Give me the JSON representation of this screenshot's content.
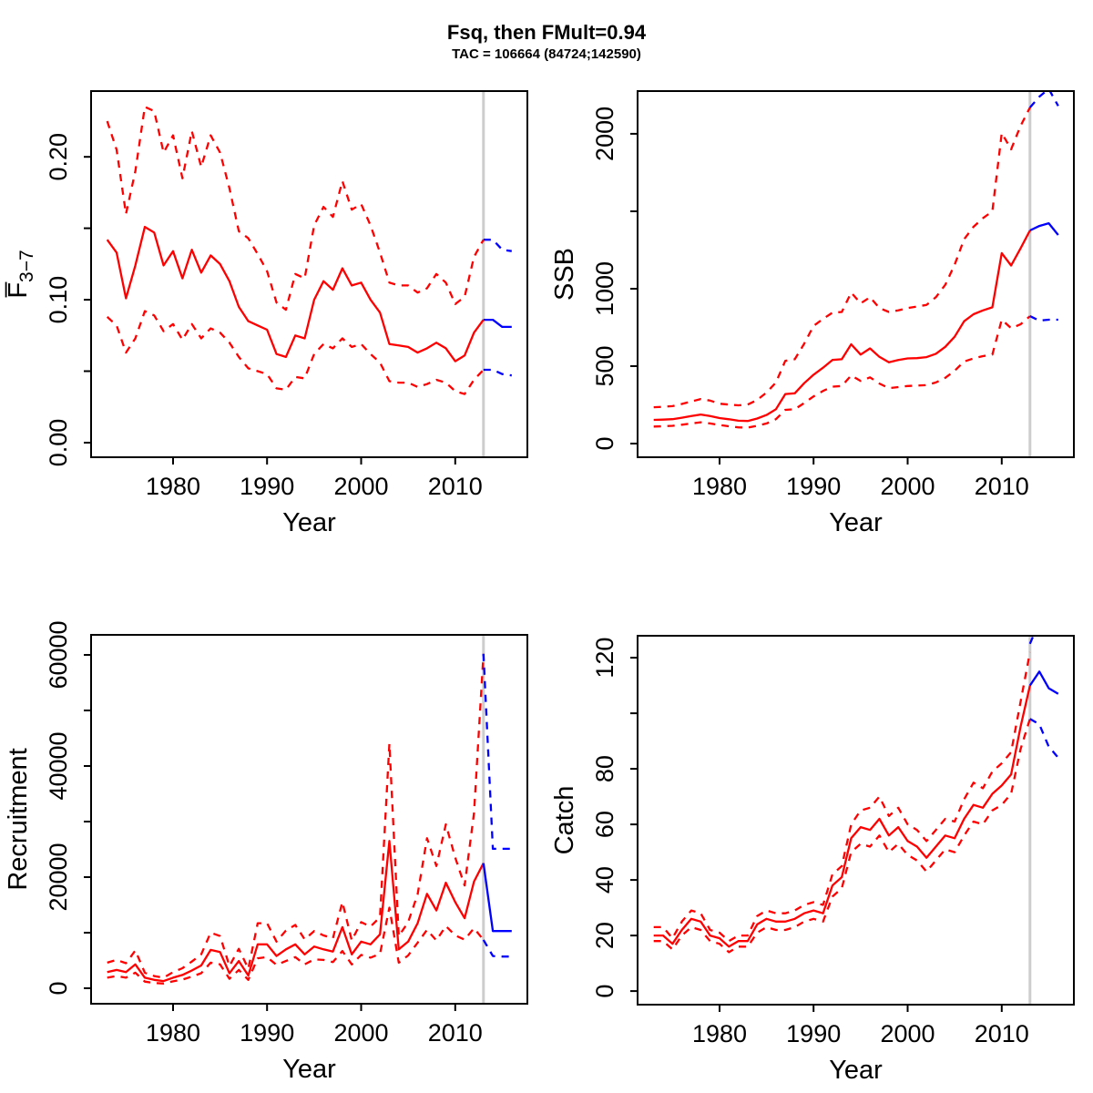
{
  "title": "Fsq, then FMult=0.94",
  "subtitle": "TAC = 106664 (84724;142590)",
  "colors": {
    "historical": "#ff0000",
    "projection": "#0000ff",
    "forecast_divider": "#cdcdcd",
    "axis": "#000000",
    "background": "#ffffff"
  },
  "chart_data": [
    {
      "type": "line",
      "name": "fbar",
      "ylabel": "F̅",
      "ylabel_sub": "3−7",
      "xlabel": "Year",
      "legend": "none",
      "grid": false,
      "xlim": [
        1971.29,
        2017.67
      ],
      "ylim": [
        -0.0102,
        0.246
      ],
      "xticks": [
        1980,
        1990,
        2000,
        2010
      ],
      "yticks": [
        {
          "v": 0.0,
          "label": "0.00"
        },
        {
          "v": 0.05,
          "label": ""
        },
        {
          "v": 0.1,
          "label": "0.10"
        },
        {
          "v": 0.15,
          "label": ""
        },
        {
          "v": 0.2,
          "label": "0.20"
        }
      ],
      "vline_year": 2013,
      "years": [
        1973,
        1974,
        1975,
        1976,
        1977,
        1978,
        1979,
        1980,
        1981,
        1982,
        1983,
        1984,
        1985,
        1986,
        1987,
        1988,
        1989,
        1990,
        1991,
        1992,
        1993,
        1994,
        1995,
        1996,
        1997,
        1998,
        1999,
        2000,
        2001,
        2002,
        2003,
        2004,
        2005,
        2006,
        2007,
        2008,
        2009,
        2010,
        2011,
        2012,
        2013
      ],
      "series": [
        {
          "name": "median",
          "style": "solid",
          "color_key": "historical",
          "values": [
            0.142,
            0.133,
            0.101,
            0.124,
            0.151,
            0.147,
            0.124,
            0.134,
            0.115,
            0.135,
            0.119,
            0.131,
            0.125,
            0.113,
            0.095,
            0.085,
            0.082,
            0.079,
            0.062,
            0.06,
            0.075,
            0.073,
            0.1,
            0.113,
            0.107,
            0.122,
            0.11,
            0.112,
            0.1,
            0.091,
            0.069,
            0.068,
            0.067,
            0.063,
            0.066,
            0.07,
            0.066,
            0.057,
            0.061,
            0.077,
            0.086
          ]
        },
        {
          "name": "upper-ci",
          "style": "dashed",
          "color_key": "historical",
          "values": [
            0.225,
            0.205,
            0.16,
            0.19,
            0.235,
            0.232,
            0.203,
            0.215,
            0.185,
            0.218,
            0.193,
            0.215,
            0.203,
            0.178,
            0.148,
            0.143,
            0.132,
            0.12,
            0.098,
            0.093,
            0.118,
            0.115,
            0.152,
            0.165,
            0.158,
            0.183,
            0.163,
            0.167,
            0.152,
            0.133,
            0.112,
            0.11,
            0.11,
            0.105,
            0.108,
            0.118,
            0.112,
            0.097,
            0.102,
            0.13,
            0.142
          ]
        },
        {
          "name": "lower-ci",
          "style": "dashed",
          "color_key": "historical",
          "values": [
            0.088,
            0.082,
            0.063,
            0.073,
            0.092,
            0.089,
            0.078,
            0.083,
            0.072,
            0.083,
            0.073,
            0.08,
            0.077,
            0.07,
            0.06,
            0.052,
            0.05,
            0.048,
            0.038,
            0.037,
            0.046,
            0.045,
            0.062,
            0.069,
            0.066,
            0.073,
            0.067,
            0.069,
            0.062,
            0.056,
            0.043,
            0.042,
            0.042,
            0.039,
            0.041,
            0.044,
            0.042,
            0.036,
            0.034,
            0.044,
            0.051
          ]
        }
      ],
      "projection": {
        "years": [
          2013,
          2014,
          2015,
          2016
        ],
        "series": [
          {
            "name": "median",
            "style": "solid",
            "values": [
              0.086,
              0.086,
              0.081,
              0.081
            ]
          },
          {
            "name": "upper-ci",
            "style": "dashed",
            "values": [
              0.142,
              0.142,
              0.135,
              0.134
            ]
          },
          {
            "name": "lower-ci",
            "style": "dashed",
            "values": [
              0.051,
              0.051,
              0.048,
              0.047
            ]
          }
        ]
      }
    },
    {
      "type": "line",
      "name": "ssb",
      "ylabel": "SSB",
      "xlabel": "Year",
      "legend": "none",
      "grid": false,
      "xlim": [
        1971.29,
        2017.67
      ],
      "ylim": [
        -88,
        2276
      ],
      "xticks": [
        1980,
        1990,
        2000,
        2010
      ],
      "yticks": [
        {
          "v": 0,
          "label": "0"
        },
        {
          "v": 500,
          "label": "500"
        },
        {
          "v": 1000,
          "label": "1000"
        },
        {
          "v": 1500,
          "label": ""
        },
        {
          "v": 2000,
          "label": "2000"
        }
      ],
      "vline_year": 2013,
      "years": [
        1973,
        1974,
        1975,
        1976,
        1977,
        1978,
        1979,
        1980,
        1981,
        1982,
        1983,
        1984,
        1985,
        1986,
        1987,
        1988,
        1989,
        1990,
        1991,
        1992,
        1993,
        1994,
        1995,
        1996,
        1997,
        1998,
        1999,
        2000,
        2001,
        2002,
        2003,
        2004,
        2005,
        2006,
        2007,
        2008,
        2009,
        2010,
        2011,
        2012,
        2013
      ],
      "series": [
        {
          "name": "median",
          "style": "solid",
          "color_key": "historical",
          "values": [
            153,
            155,
            158,
            167,
            178,
            188,
            178,
            165,
            157,
            148,
            146,
            162,
            185,
            222,
            320,
            325,
            390,
            445,
            490,
            540,
            545,
            641,
            575,
            615,
            560,
            525,
            540,
            550,
            552,
            558,
            580,
            625,
            690,
            790,
            835,
            860,
            880,
            1230,
            1150,
            1260,
            1376
          ]
        },
        {
          "name": "upper-ci",
          "style": "dashed",
          "color_key": "historical",
          "values": [
            235,
            238,
            242,
            256,
            272,
            288,
            278,
            258,
            252,
            247,
            252,
            282,
            330,
            395,
            535,
            545,
            645,
            760,
            805,
            845,
            850,
            975,
            905,
            945,
            875,
            850,
            860,
            875,
            885,
            895,
            945,
            1025,
            1155,
            1320,
            1400,
            1455,
            1500,
            2005,
            1900,
            2050,
            2170
          ]
        },
        {
          "name": "lower-ci",
          "style": "dashed",
          "color_key": "historical",
          "values": [
            110,
            112,
            115,
            122,
            130,
            138,
            130,
            120,
            112,
            105,
            103,
            115,
            130,
            158,
            218,
            222,
            262,
            305,
            340,
            368,
            372,
            440,
            405,
            428,
            388,
            358,
            365,
            372,
            375,
            378,
            395,
            425,
            470,
            530,
            550,
            565,
            575,
            800,
            745,
            770,
            823
          ]
        }
      ],
      "projection": {
        "years": [
          2013,
          2014,
          2015,
          2016
        ],
        "series": [
          {
            "name": "median",
            "style": "solid",
            "values": [
              1376,
              1405,
              1423,
              1347
            ]
          },
          {
            "name": "upper-ci",
            "style": "dashed",
            "values": [
              2170,
              2240,
              2290,
              2180
            ]
          },
          {
            "name": "lower-ci",
            "style": "dashed",
            "values": [
              823,
              794,
              800,
              800
            ]
          }
        ]
      }
    },
    {
      "type": "line",
      "name": "recruitment",
      "ylabel": "Recruitment",
      "xlabel": "Year",
      "legend": "none",
      "grid": false,
      "xlim": [
        1971.29,
        2017.67
      ],
      "ylim": [
        -2787,
        63606
      ],
      "xticks": [
        1980,
        1990,
        2000,
        2010
      ],
      "yticks": [
        {
          "v": 0,
          "label": "0"
        },
        {
          "v": 10000,
          "label": ""
        },
        {
          "v": 20000,
          "label": "20000"
        },
        {
          "v": 30000,
          "label": ""
        },
        {
          "v": 40000,
          "label": "40000"
        },
        {
          "v": 50000,
          "label": ""
        },
        {
          "v": 60000,
          "label": "60000"
        }
      ],
      "vline_year": 2013,
      "years": [
        1973,
        1974,
        1975,
        1976,
        1977,
        1978,
        1979,
        1980,
        1981,
        1982,
        1983,
        1984,
        1985,
        1986,
        1987,
        1988,
        1989,
        1990,
        1991,
        1992,
        1993,
        1994,
        1995,
        1996,
        1997,
        1998,
        1999,
        2000,
        2001,
        2002,
        2003,
        2004,
        2005,
        2006,
        2007,
        2008,
        2009,
        2010,
        2011,
        2012,
        2013
      ],
      "series": [
        {
          "name": "median",
          "style": "solid",
          "color_key": "historical",
          "values": [
            2900,
            3300,
            2900,
            4300,
            1900,
            1500,
            1300,
            1900,
            2400,
            3200,
            4100,
            6900,
            6500,
            2700,
            4900,
            2300,
            7900,
            7900,
            5800,
            7000,
            7900,
            6100,
            7500,
            7000,
            6600,
            11000,
            6100,
            8400,
            7900,
            9700,
            26500,
            7000,
            8400,
            11700,
            17000,
            14000,
            19000,
            15500,
            12600,
            19200,
            22500
          ]
        },
        {
          "name": "upper-ci",
          "style": "dashed",
          "color_key": "historical",
          "values": [
            4600,
            5100,
            4500,
            6800,
            2800,
            2200,
            1900,
            2900,
            3600,
            4800,
            6100,
            10000,
            9400,
            4000,
            7100,
            3500,
            11700,
            11700,
            8400,
            10400,
            11400,
            8800,
            10300,
            9500,
            9000,
            15500,
            8600,
            11900,
            11100,
            12800,
            44000,
            9400,
            11900,
            16900,
            27000,
            22000,
            29500,
            23500,
            18500,
            31500,
            60200
          ]
        },
        {
          "name": "lower-ci",
          "style": "dashed",
          "color_key": "historical",
          "values": [
            1900,
            2200,
            1900,
            2800,
            1200,
            950,
            850,
            1250,
            1550,
            2100,
            2700,
            4600,
            4300,
            1700,
            3300,
            1500,
            5400,
            5600,
            4200,
            4900,
            5600,
            4300,
            5200,
            5100,
            4700,
            6700,
            4300,
            6000,
            5500,
            6200,
            14500,
            4600,
            5900,
            8200,
            10500,
            8600,
            11200,
            9500,
            8750,
            10800,
            8700
          ]
        }
      ],
      "projection": {
        "years": [
          2013,
          2014,
          2015,
          2016
        ],
        "series": [
          {
            "name": "median",
            "style": "solid",
            "values": [
              22500,
              10300,
              10300,
              10300
            ]
          },
          {
            "name": "upper-ci",
            "style": "dashed",
            "values": [
              60200,
              25100,
              25100,
              25100
            ]
          },
          {
            "name": "lower-ci",
            "style": "dashed",
            "values": [
              8700,
              5800,
              5700,
              5700
            ]
          }
        ]
      }
    },
    {
      "type": "line",
      "name": "catch",
      "ylabel": "Catch",
      "xlabel": "Year",
      "legend": "none",
      "grid": false,
      "xlim": [
        1971.29,
        2017.67
      ],
      "ylim": [
        -4.9,
        127.9
      ],
      "xticks": [
        1980,
        1990,
        2000,
        2010
      ],
      "yticks": [
        {
          "v": 0,
          "label": "0"
        },
        {
          "v": 20,
          "label": "20"
        },
        {
          "v": 40,
          "label": "40"
        },
        {
          "v": 60,
          "label": "60"
        },
        {
          "v": 80,
          "label": "80"
        },
        {
          "v": 100,
          "label": ""
        },
        {
          "v": 120,
          "label": "120"
        }
      ],
      "vline_year": 2013,
      "years": [
        1973,
        1974,
        1975,
        1976,
        1977,
        1978,
        1979,
        1980,
        1981,
        1982,
        1983,
        1984,
        1985,
        1986,
        1987,
        1988,
        1989,
        1990,
        1991,
        1992,
        1993,
        1994,
        1995,
        1996,
        1997,
        1998,
        1999,
        2000,
        2001,
        2002,
        2003,
        2004,
        2005,
        2006,
        2007,
        2008,
        2009,
        2010,
        2011,
        2012,
        2013
      ],
      "series": [
        {
          "name": "median",
          "style": "solid",
          "color_key": "historical",
          "values": [
            20,
            20,
            17,
            22,
            26,
            25,
            20,
            19,
            16,
            18,
            18,
            24,
            26,
            25,
            25,
            26,
            28,
            29,
            28,
            38,
            41,
            55,
            59,
            58,
            62,
            56,
            59,
            54,
            52,
            48,
            52,
            56,
            55,
            62,
            67,
            66,
            71,
            74,
            78,
            95,
            110
          ]
        },
        {
          "name": "upper-ci",
          "style": "dashed",
          "color_key": "historical",
          "values": [
            23,
            23,
            19,
            25,
            29,
            28,
            22,
            21,
            18,
            20,
            20,
            27,
            29,
            28,
            28,
            29,
            31,
            32,
            31,
            42,
            45,
            60,
            65,
            66,
            70,
            63,
            66,
            60,
            58,
            54,
            58,
            62,
            61,
            69,
            75,
            73,
            79,
            82,
            86,
            104,
            122
          ]
        },
        {
          "name": "lower-ci",
          "style": "dashed",
          "color_key": "historical",
          "values": [
            18,
            18,
            15,
            20,
            23,
            22,
            18,
            17,
            14,
            16,
            16,
            21,
            23,
            22,
            22,
            23,
            25,
            26,
            25,
            34,
            37,
            50,
            53,
            52,
            56,
            50,
            53,
            49,
            47,
            43,
            47,
            51,
            50,
            56,
            61,
            60,
            65,
            67,
            71,
            87,
            98
          ]
        }
      ],
      "projection": {
        "years": [
          2013,
          2014,
          2015,
          2016
        ],
        "series": [
          {
            "name": "median",
            "style": "solid",
            "values": [
              110,
              115,
              109,
              107
            ]
          },
          {
            "name": "upper-ci",
            "style": "dashed",
            "values": [
              125,
              133,
              132,
              130
            ]
          },
          {
            "name": "lower-ci",
            "style": "dashed",
            "values": [
              98,
              96,
              88,
              84
            ]
          }
        ]
      }
    }
  ]
}
